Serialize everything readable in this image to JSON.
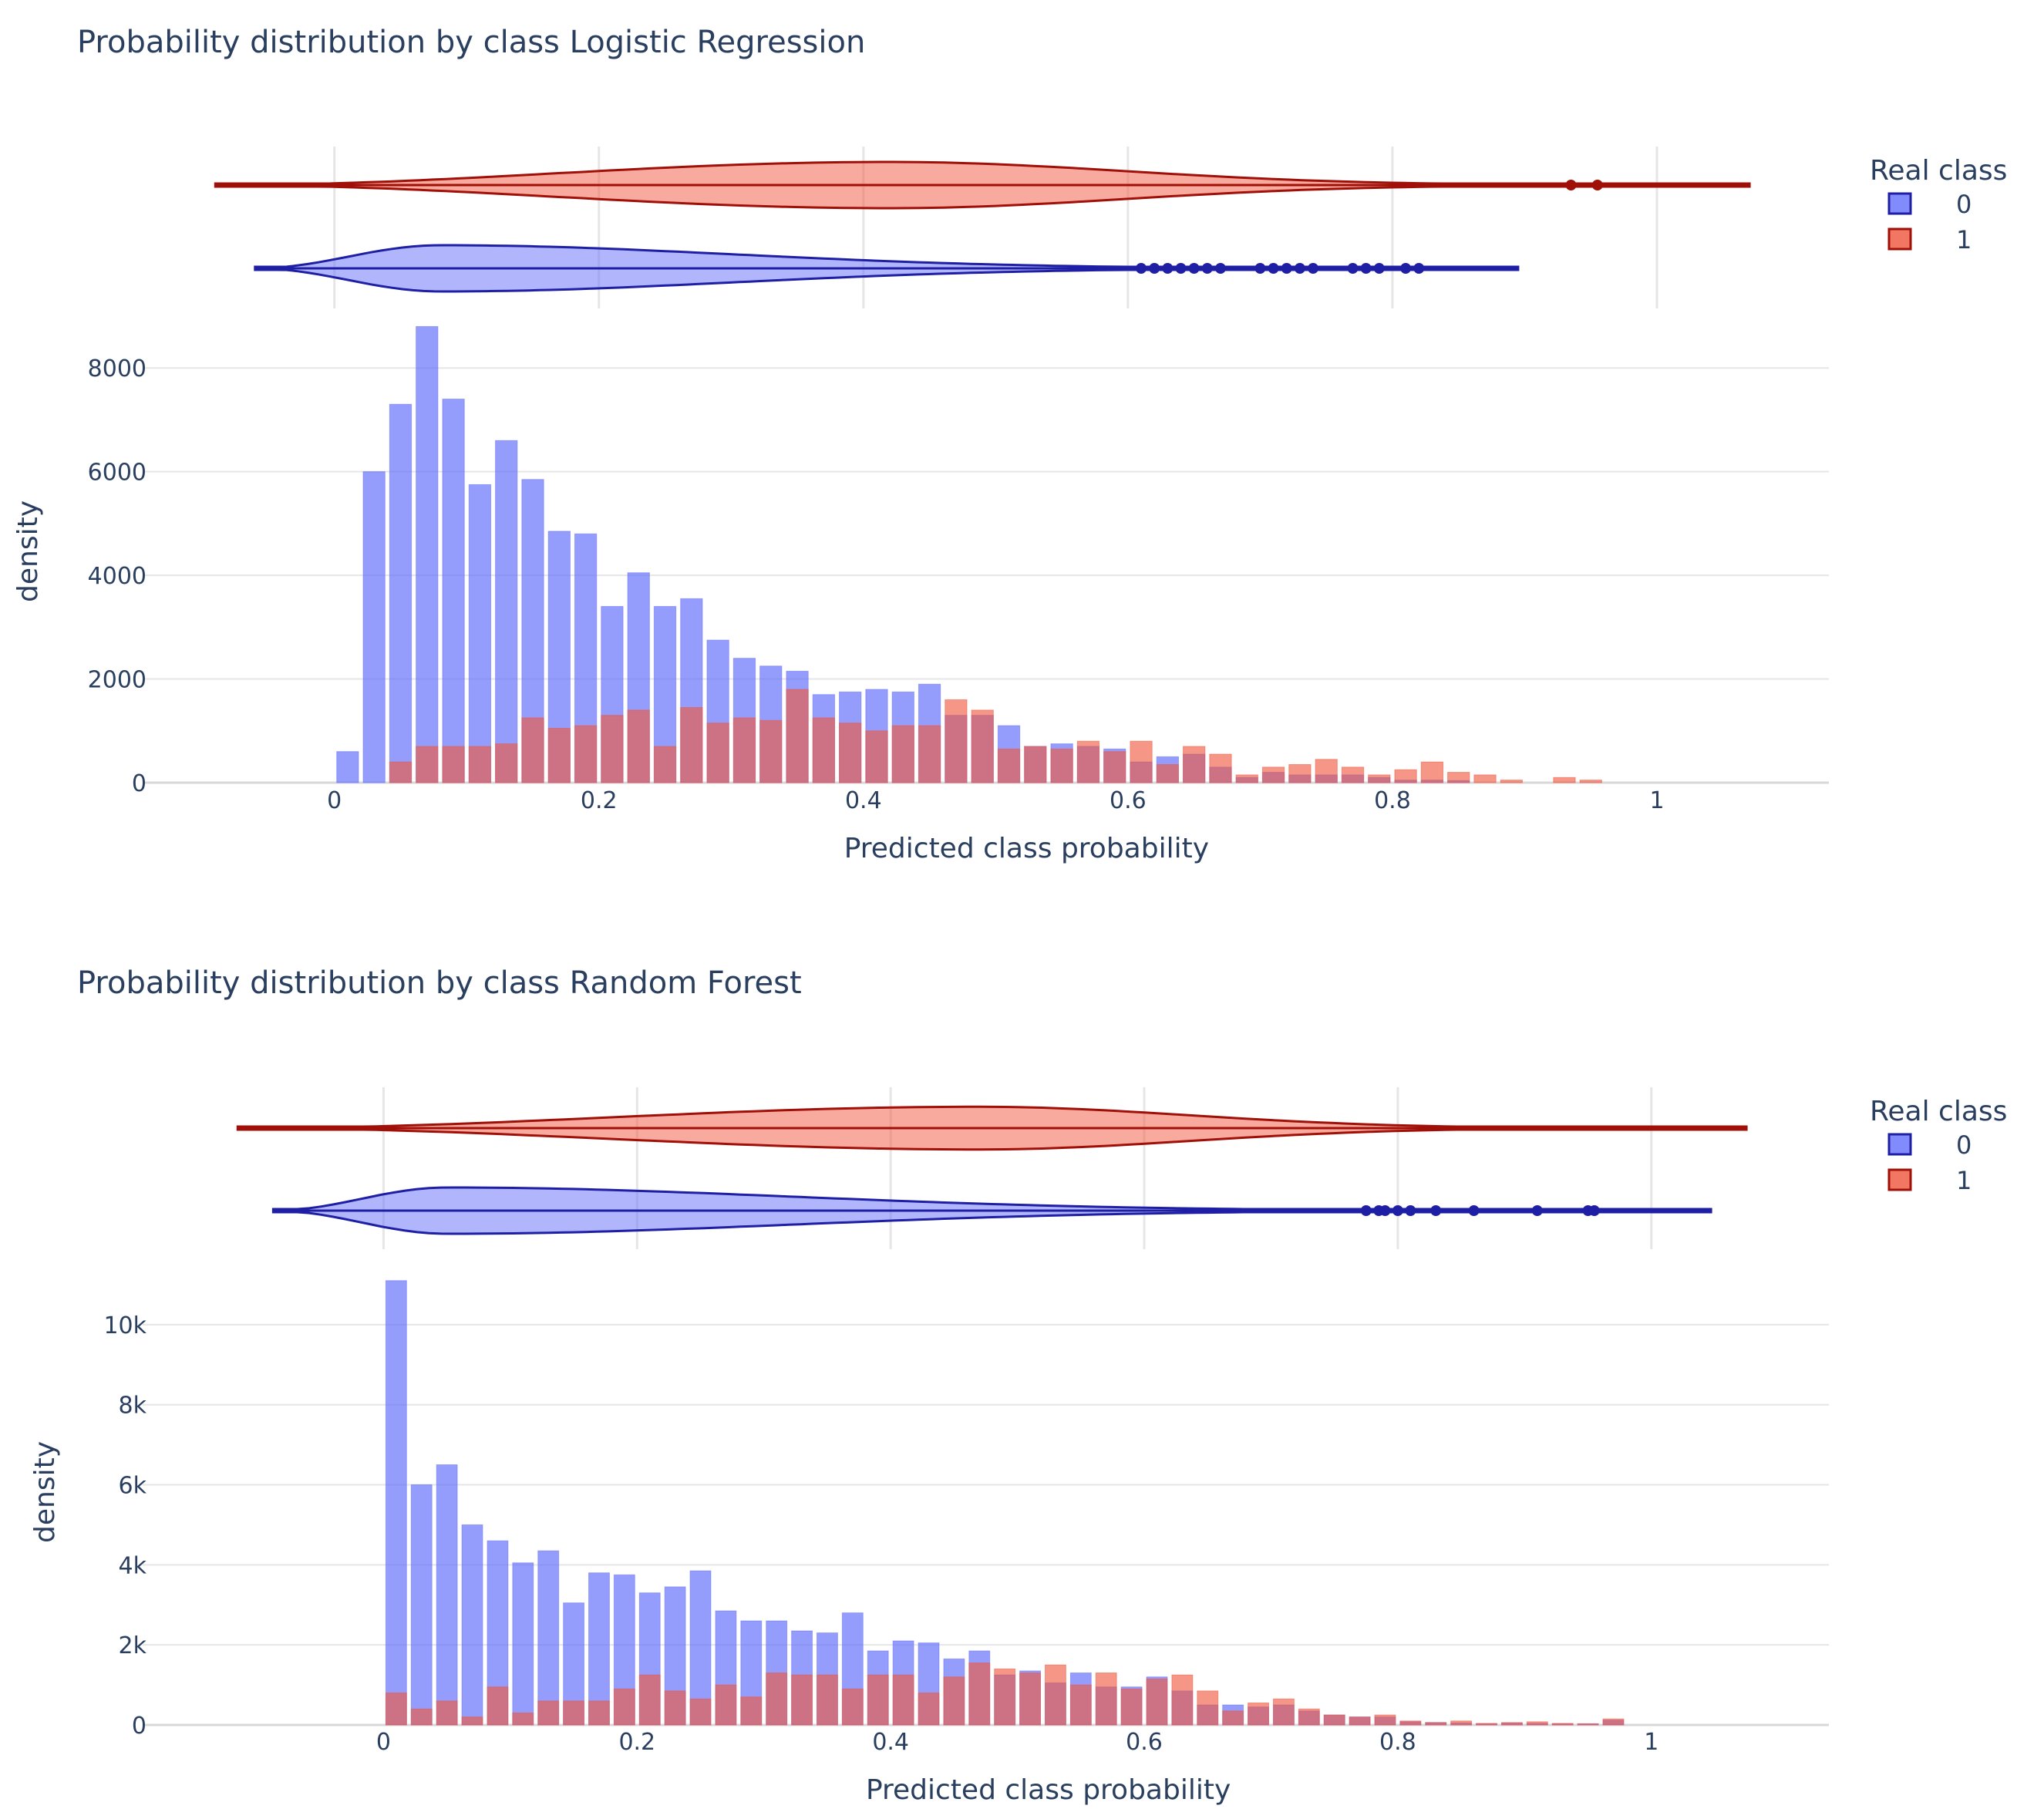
{
  "colors": {
    "class0_fill": "#636efa",
    "class0_line": "#1f1fa5",
    "class1_fill": "#ef553b",
    "class1_line": "#a01008",
    "overlap": "#c0506e",
    "grid": "#e6e6e6",
    "text": "#2a3f5f"
  },
  "legend": {
    "title": "Real class",
    "labels": [
      "0",
      "1"
    ]
  },
  "chart_data": [
    {
      "type": "histogram",
      "marginal": "violin",
      "title": "Probability distribution by class Logistic Regression",
      "xlabel": "Predicted class probability",
      "ylabel": "density",
      "xticks": [
        {
          "v": 0,
          "label": "0"
        },
        {
          "v": 0.2,
          "label": "0.2"
        },
        {
          "v": 0.4,
          "label": "0.4"
        },
        {
          "v": 0.6,
          "label": "0.6"
        },
        {
          "v": 0.8,
          "label": "0.8"
        },
        {
          "v": 1,
          "label": "1"
        }
      ],
      "yticks": [
        {
          "v": 0,
          "label": "0"
        },
        {
          "v": 2000,
          "label": "2000"
        },
        {
          "v": 4000,
          "label": "4000"
        },
        {
          "v": 6000,
          "label": "6000"
        },
        {
          "v": 8000,
          "label": "8000"
        }
      ],
      "xrange": [
        -0.145,
        1.13
      ],
      "ylim": [
        0,
        9000
      ],
      "bin_start": 0.0,
      "bin_width": 0.02,
      "grid": true,
      "legend_position": "top-right",
      "series": [
        {
          "name": "0",
          "values": [
            600,
            6000,
            7300,
            8800,
            7400,
            5750,
            6600,
            5850,
            4850,
            4800,
            3400,
            4050,
            3400,
            3550,
            2750,
            2400,
            2250,
            2150,
            1700,
            1750,
            1800,
            1750,
            1900,
            1300,
            1300,
            1100,
            700,
            750,
            700,
            650,
            400,
            500,
            550,
            300,
            100,
            200,
            150,
            150,
            150,
            100,
            50,
            50,
            40,
            0,
            0,
            0,
            0,
            0
          ]
        },
        {
          "name": "1",
          "values": [
            0,
            0,
            400,
            700,
            700,
            700,
            750,
            1250,
            1050,
            1100,
            1300,
            1400,
            700,
            1450,
            1150,
            1250,
            1200,
            1800,
            1250,
            1150,
            1000,
            1100,
            1100,
            1600,
            1400,
            650,
            700,
            650,
            800,
            600,
            800,
            350,
            700,
            550,
            150,
            300,
            350,
            450,
            300,
            150,
            250,
            400,
            200,
            150,
            50,
            0,
            100,
            50
          ]
        }
      ],
      "violins": [
        {
          "name": "1",
          "x_min": -0.09,
          "x_max": 1.07,
          "mode": 0.42,
          "half_height": 0.26,
          "outliers": [
            0.935,
            0.955
          ]
        },
        {
          "name": "0",
          "x_min": -0.06,
          "x_max": 0.895,
          "mode": 0.08,
          "half_height": 0.26,
          "outliers": [
            0.61,
            0.62,
            0.63,
            0.64,
            0.65,
            0.66,
            0.67,
            0.7,
            0.71,
            0.72,
            0.73,
            0.74,
            0.77,
            0.78,
            0.79,
            0.81,
            0.82
          ]
        }
      ]
    },
    {
      "type": "histogram",
      "marginal": "violin",
      "title": "Probability distribution by class Random Forest",
      "xlabel": "Predicted class probability",
      "ylabel": "density",
      "xticks": [
        {
          "v": 0,
          "label": "0"
        },
        {
          "v": 0.2,
          "label": "0.2"
        },
        {
          "v": 0.4,
          "label": "0.4"
        },
        {
          "v": 0.6,
          "label": "0.6"
        },
        {
          "v": 0.8,
          "label": "0.8"
        },
        {
          "v": 1,
          "label": "1"
        }
      ],
      "yticks": [
        {
          "v": 0,
          "label": "0"
        },
        {
          "v": 2000,
          "label": "2k"
        },
        {
          "v": 4000,
          "label": "4k"
        },
        {
          "v": 6000,
          "label": "6k"
        },
        {
          "v": 8000,
          "label": "8k"
        },
        {
          "v": 10000,
          "label": "10k"
        }
      ],
      "xrange": [
        -0.19,
        1.14
      ],
      "ylim": [
        0,
        11500
      ],
      "bin_start": 0.0,
      "bin_width": 0.02,
      "grid": true,
      "legend_position": "top-right",
      "series": [
        {
          "name": "0",
          "values": [
            11100,
            6000,
            6500,
            5000,
            4600,
            4050,
            4350,
            3050,
            3800,
            3750,
            3300,
            3450,
            3850,
            2850,
            2600,
            2600,
            2350,
            2300,
            2800,
            1850,
            2100,
            2050,
            1650,
            1850,
            1250,
            1350,
            1050,
            1300,
            950,
            950,
            1200,
            850,
            500,
            500,
            450,
            500,
            350,
            250,
            200,
            200,
            80,
            60,
            50,
            30,
            50,
            40,
            30,
            30,
            120
          ]
        },
        {
          "name": "1",
          "values": [
            800,
            400,
            600,
            200,
            950,
            300,
            600,
            600,
            600,
            900,
            1250,
            850,
            650,
            1000,
            700,
            1300,
            1250,
            1250,
            900,
            1250,
            1250,
            800,
            1200,
            1550,
            1400,
            1300,
            1500,
            1000,
            1300,
            900,
            1150,
            1250,
            850,
            350,
            550,
            650,
            400,
            250,
            200,
            250,
            100,
            60,
            100,
            40,
            60,
            80,
            40,
            30,
            150
          ]
        }
      ],
      "violins": [
        {
          "name": "1",
          "x_min": -0.115,
          "x_max": 1.075,
          "mode": 0.47,
          "half_height": 0.24,
          "outliers": []
        },
        {
          "name": "0",
          "x_min": -0.087,
          "x_max": 1.047,
          "mode": 0.05,
          "half_height": 0.26,
          "outliers": [
            0.775,
            0.785,
            0.79,
            0.8,
            0.81,
            0.83,
            0.86,
            0.91,
            0.95,
            0.955
          ]
        }
      ]
    }
  ]
}
